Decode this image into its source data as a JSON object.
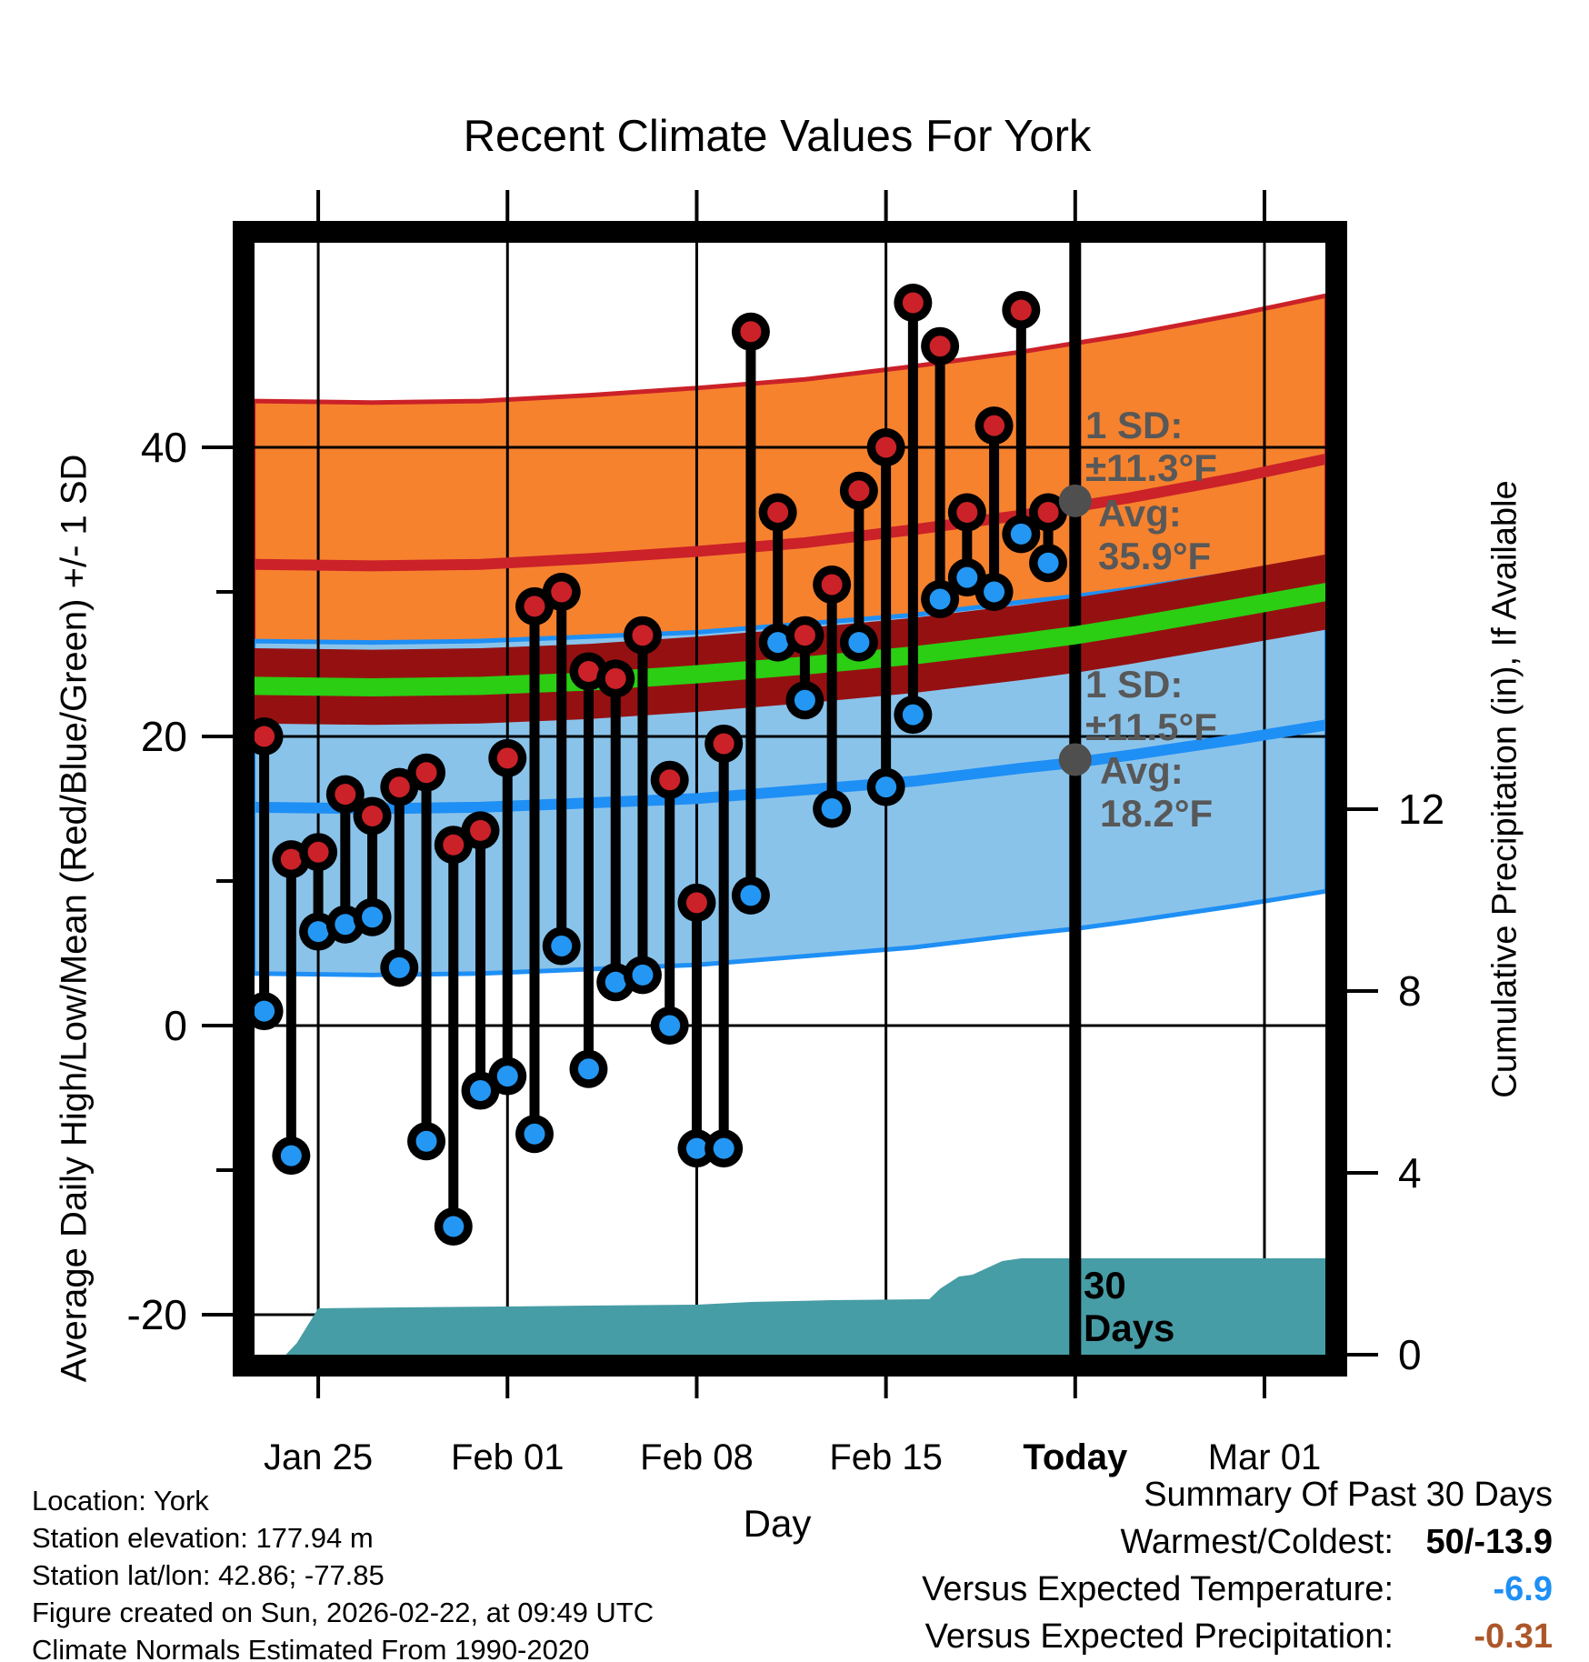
{
  "chart_data": {
    "type": "line",
    "subtype": "daily-high-low-range-with-climate-normal-bands",
    "title": "Recent Climate Values For York",
    "xlabel": "Day",
    "ylabel_left": "Average Daily High/Low/Mean (Red/Blue/Green) +/- 1 SD",
    "ylabel_right": "Cumulative Precipitation (in), If Available",
    "grid": true,
    "x_ticks": [
      {
        "label": "Jan 25",
        "day": 2,
        "bold": false
      },
      {
        "label": "Feb 01",
        "day": 9,
        "bold": false
      },
      {
        "label": "Feb 08",
        "day": 16,
        "bold": false
      },
      {
        "label": "Feb 15",
        "day": 23,
        "bold": false
      },
      {
        "label": "Today",
        "day": 30,
        "bold": true
      },
      {
        "label": "Mar 01",
        "day": 37,
        "bold": false
      }
    ],
    "y_left_ticks": [
      40,
      20,
      0,
      -20
    ],
    "y_left_minor_ticks": [
      30,
      10,
      -10
    ],
    "y_left_range_f": [
      -22.8,
      54.3
    ],
    "y_right_ticks": [
      12,
      8,
      4,
      0
    ],
    "y_right_range_in": [
      0,
      14.6
    ],
    "daily": {
      "dates": [
        "Jan 23",
        "Jan 24",
        "Jan 25",
        "Jan 26",
        "Jan 27",
        "Jan 28",
        "Jan 29",
        "Jan 30",
        "Jan 31",
        "Feb 01",
        "Feb 02",
        "Feb 03",
        "Feb 04",
        "Feb 05",
        "Feb 06",
        "Feb 07",
        "Feb 08",
        "Feb 09",
        "Feb 10",
        "Feb 11",
        "Feb 12",
        "Feb 13",
        "Feb 14",
        "Feb 15",
        "Feb 16",
        "Feb 17",
        "Feb 18",
        "Feb 19",
        "Feb 20",
        "Feb 21"
      ],
      "high_f": [
        20,
        11.5,
        12,
        16,
        14.5,
        16.5,
        17.5,
        12.5,
        13.5,
        18.5,
        29,
        30,
        24.5,
        24,
        27,
        17,
        8.5,
        19.5,
        48,
        35.5,
        27,
        30.5,
        37,
        40,
        50,
        47,
        35.5,
        41.5,
        49.5,
        35.5
      ],
      "low_f": [
        1,
        -9,
        6.5,
        7,
        7.5,
        4,
        -8,
        -13.9,
        -4.5,
        -3.5,
        -7.5,
        5.5,
        -3,
        3,
        3.5,
        0,
        -8.5,
        -8.5,
        9,
        26.5,
        22.5,
        15,
        26.5,
        16.5,
        21.5,
        29.5,
        31,
        30,
        34,
        32
      ]
    },
    "normals": {
      "days": [
        -0.4,
        4,
        8,
        12,
        16,
        20,
        24,
        28,
        30,
        32,
        36,
        39.3
      ],
      "avg_high": [
        31.9,
        31.8,
        31.9,
        32.3,
        32.8,
        33.4,
        34.3,
        35.3,
        35.9,
        36.5,
        37.9,
        39.2
      ],
      "avg_low": [
        15.1,
        15.0,
        15.1,
        15.4,
        15.7,
        16.3,
        16.9,
        17.8,
        18.2,
        18.7,
        19.8,
        20.8
      ],
      "mean": [
        23.5,
        23.4,
        23.5,
        23.8,
        24.3,
        24.9,
        25.6,
        26.5,
        27.0,
        27.6,
        28.9,
        30.0
      ],
      "sd_high_f": 11.3,
      "sd_low_f": 11.5,
      "mean_band_halfwidth_f": 2.6
    },
    "precip_cumulative": {
      "days": [
        0.8,
        1.2,
        2.0,
        5,
        9,
        12,
        16,
        18,
        21,
        24.6,
        25.0,
        25.7,
        26.2,
        27.3,
        28.0,
        30,
        35,
        39.3
      ],
      "inches": [
        0,
        0.25,
        1.02,
        1.04,
        1.06,
        1.08,
        1.1,
        1.16,
        1.2,
        1.22,
        1.45,
        1.72,
        1.76,
        2.06,
        2.12,
        2.12,
        2.12,
        2.12
      ]
    },
    "today_day_index": 30,
    "avg_markers": {
      "high_f": 36.3,
      "low_f": 18.4
    }
  },
  "annotations": {
    "high_sd": {
      "l1": "1 SD:",
      "l2": "±11.3°F"
    },
    "high_avg": {
      "l1": "Avg:",
      "l2": "35.9°F"
    },
    "low_sd": {
      "l1": "1 SD:",
      "l2": "±11.5°F"
    },
    "low_avg": {
      "l1": "Avg:",
      "l2": "18.2°F"
    },
    "period": {
      "l1": "30",
      "l2": "Days"
    }
  },
  "footer": {
    "lines": [
      "Location: York",
      "Station elevation: 177.94 m",
      "Station lat/lon: 42.86; -77.85",
      "Figure created on Sun, 2026-02-22, at 09:49 UTC",
      "Climate Normals Estimated From 1990-2020"
    ]
  },
  "summary": {
    "header": "Summary Of Past 30 Days",
    "rows": [
      {
        "label": "Warmest/Coldest:",
        "value": "50/-13.9",
        "color": "#000000"
      },
      {
        "label": "Versus Expected Temperature:",
        "value": "-6.9",
        "color": "#1E8FF5"
      },
      {
        "label": "Versus Expected Precipitation:",
        "value": "-0.31",
        "color": "#AD5629"
      }
    ]
  },
  "colors": {
    "band_high_fill": "#F6822E",
    "band_low_fill": "#8AC3EA",
    "mean_band_fill": "#951111",
    "avg_high_line": "#CB2128",
    "avg_low_line": "#1E8FF5",
    "mean_line": "#2BCE13",
    "high_dot": "#CB2128",
    "low_dot": "#2397F3",
    "stem": "#000000",
    "precip_fill": "#479DA5",
    "gridline": "#000000",
    "annotation_gray": "#585858",
    "marker_gray": "#4F4F4F"
  }
}
